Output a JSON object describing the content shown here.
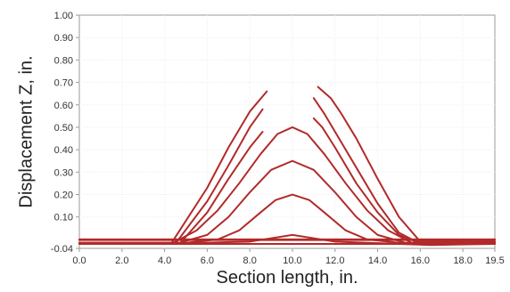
{
  "chart_data": {
    "type": "line",
    "xlabel": "Section length, in.",
    "ylabel": "Displacement Z, in.",
    "xlim": [
      0,
      19.5
    ],
    "ylim": [
      -0.04,
      1.0
    ],
    "grid": true,
    "line_color": "#b22a2a",
    "x_ticks": [
      {
        "value": 0,
        "label": "0.0"
      },
      {
        "value": 2,
        "label": "2.0"
      },
      {
        "value": 4,
        "label": "4.0"
      },
      {
        "value": 6,
        "label": "6.0"
      },
      {
        "value": 8,
        "label": "8.0"
      },
      {
        "value": 10,
        "label": "10.0"
      },
      {
        "value": 12,
        "label": "12.0"
      },
      {
        "value": 14,
        "label": "14.0"
      },
      {
        "value": 16,
        "label": "16.0"
      },
      {
        "value": 18,
        "label": "18.0"
      },
      {
        "value": 19.5,
        "label": "19.5"
      }
    ],
    "y_ticks": [
      {
        "value": -0.04,
        "label": "-0.04"
      },
      {
        "value": 0.1,
        "label": "0.10"
      },
      {
        "value": 0.2,
        "label": "0.20"
      },
      {
        "value": 0.3,
        "label": "0.30"
      },
      {
        "value": 0.4,
        "label": "0.40"
      },
      {
        "value": 0.5,
        "label": "0.50"
      },
      {
        "value": 0.6,
        "label": "0.60"
      },
      {
        "value": 0.7,
        "label": "0.70"
      },
      {
        "value": 0.8,
        "label": "0.80"
      },
      {
        "value": 0.9,
        "label": "0.90"
      },
      {
        "value": 1.0,
        "label": "1.00"
      }
    ],
    "series": [
      {
        "x": [
          0,
          19.5
        ],
        "y": [
          -0.02,
          -0.02
        ]
      },
      {
        "x": [
          0,
          19.5
        ],
        "y": [
          -0.003,
          -0.003
        ]
      },
      {
        "x": [
          0,
          19.5
        ],
        "y": [
          0.0,
          0.0
        ]
      },
      {
        "x": [
          0,
          3.5,
          8.0,
          10.0,
          12.0,
          16.5,
          19.5
        ],
        "y": [
          -0.02,
          -0.02,
          -0.01,
          0.02,
          -0.01,
          -0.025,
          -0.02
        ]
      },
      {
        "x": [
          0,
          5.0,
          6.5,
          7.5,
          8.5,
          9.2,
          10.0,
          10.8,
          11.5,
          12.5,
          13.5,
          15.0,
          19.5
        ],
        "y": [
          -0.015,
          -0.015,
          0.0,
          0.04,
          0.12,
          0.175,
          0.2,
          0.175,
          0.12,
          0.04,
          0.0,
          -0.015,
          -0.015
        ]
      },
      {
        "x": [
          0,
          4.7,
          6.0,
          7.0,
          8.0,
          9.0,
          10.0,
          11.0,
          12.0,
          13.0,
          14.0,
          15.3,
          19.5
        ],
        "y": [
          -0.015,
          -0.015,
          0.02,
          0.1,
          0.21,
          0.31,
          0.35,
          0.31,
          0.21,
          0.1,
          0.02,
          -0.015,
          -0.015
        ]
      },
      {
        "x": [
          0,
          4.4,
          5.5,
          6.5,
          7.5,
          8.5,
          9.3,
          10.0,
          10.7,
          11.5,
          12.5,
          13.5,
          14.5,
          15.6,
          19.5
        ],
        "y": [
          -0.015,
          -0.015,
          0.04,
          0.13,
          0.25,
          0.38,
          0.47,
          0.5,
          0.47,
          0.38,
          0.25,
          0.13,
          0.04,
          -0.015,
          -0.015
        ]
      },
      {
        "x": [
          0,
          4.7,
          6.0,
          7.0,
          8.0,
          8.6
        ],
        "y": [
          -0.02,
          -0.02,
          0.12,
          0.27,
          0.41,
          0.48
        ]
      },
      {
        "x": [
          11.0,
          11.4,
          12.0,
          13.0,
          14.0,
          15.0,
          15.8,
          19.5
        ],
        "y": [
          0.54,
          0.5,
          0.41,
          0.25,
          0.12,
          0.02,
          -0.01,
          -0.01
        ]
      },
      {
        "x": [
          0,
          4.5,
          6.0,
          7.0,
          8.0,
          8.6
        ],
        "y": [
          -0.02,
          -0.02,
          0.17,
          0.33,
          0.5,
          0.58
        ]
      },
      {
        "x": [
          11.0,
          11.5,
          12.0,
          13.0,
          14.0,
          15.0,
          15.8,
          19.5
        ],
        "y": [
          0.63,
          0.56,
          0.48,
          0.32,
          0.16,
          0.03,
          -0.01,
          -0.01
        ]
      },
      {
        "x": [
          0,
          4.3,
          6.0,
          7.0,
          8.0,
          8.8
        ],
        "y": [
          -0.02,
          -0.02,
          0.23,
          0.41,
          0.57,
          0.66
        ]
      },
      {
        "x": [
          11.2,
          11.8,
          12.3,
          13.0,
          14.0,
          15.0,
          16.0,
          19.5
        ],
        "y": [
          0.68,
          0.63,
          0.56,
          0.45,
          0.27,
          0.1,
          -0.01,
          -0.01
        ]
      }
    ]
  }
}
